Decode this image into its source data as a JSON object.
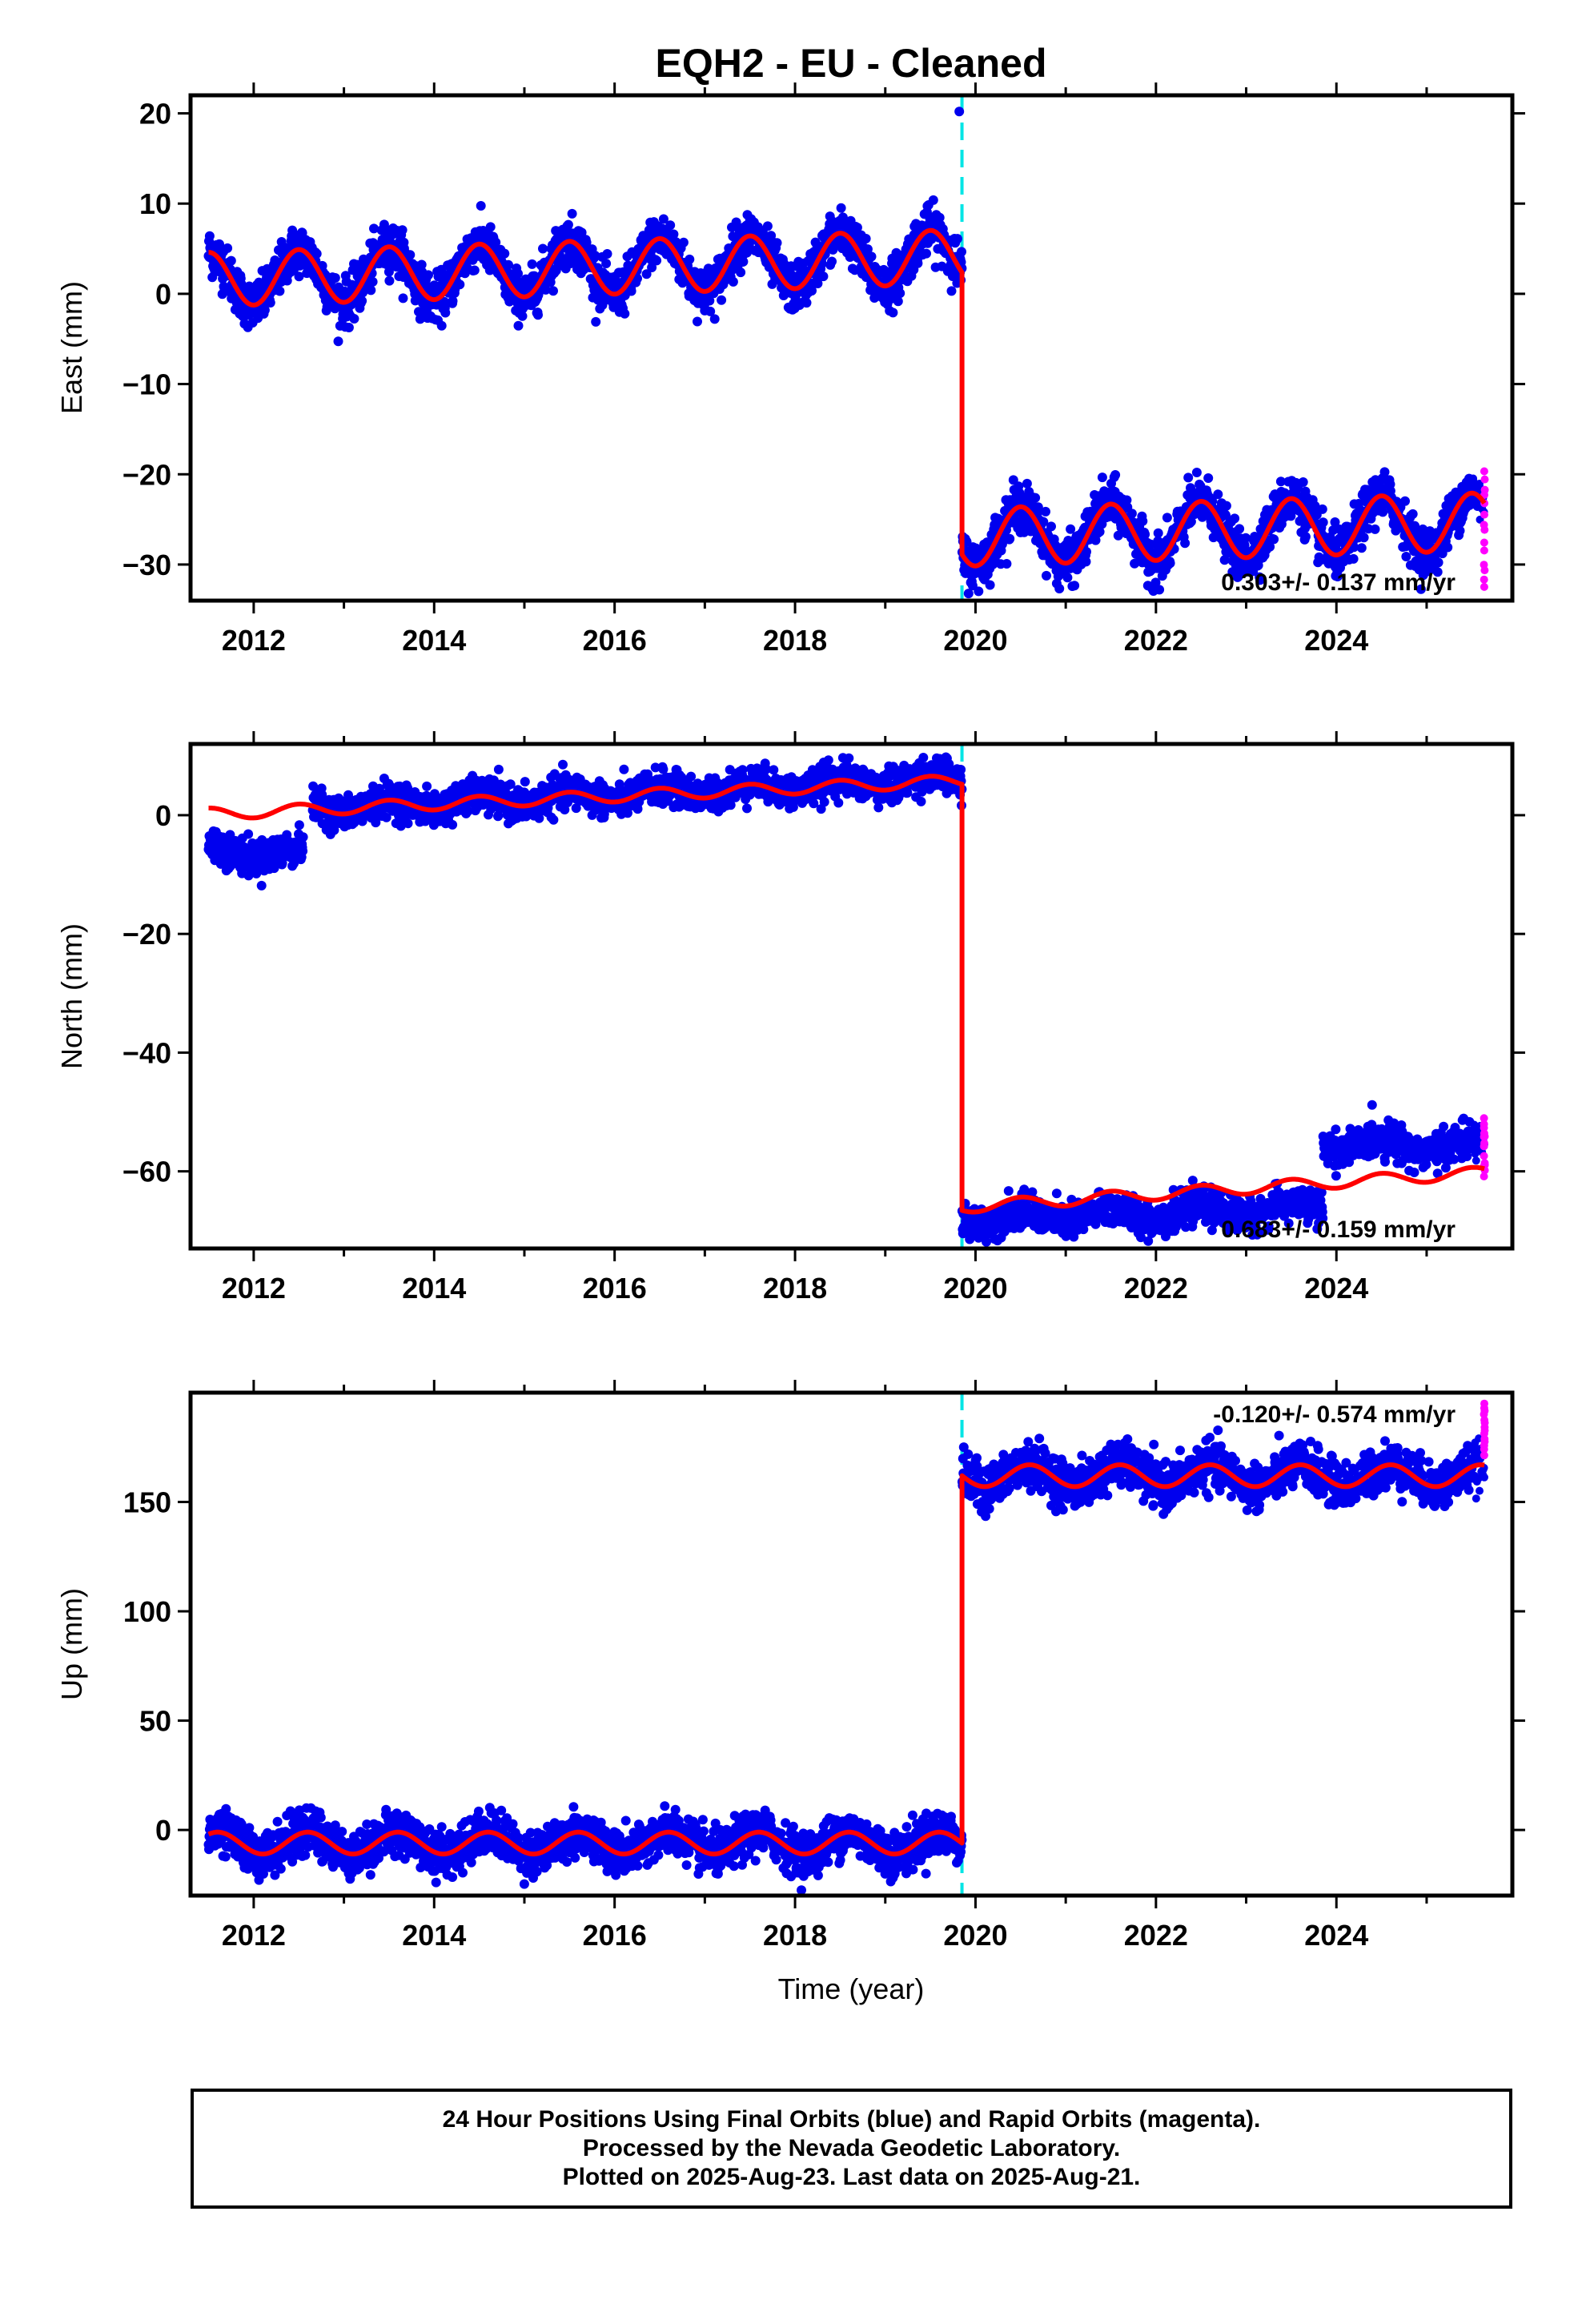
{
  "title": "EQH2  - EU - Cleaned",
  "footer": {
    "line1": "24 Hour Positions Using Final Orbits (blue) and Rapid Orbits (magenta).",
    "line2": "Processed by the Nevada Geodetic Laboratory.",
    "line3": "Plotted on 2025-Aug-23. Last data on 2025-Aug-21."
  },
  "colors": {
    "final_points": "#0000ee",
    "rapid_points": "#ff00ff",
    "model_line": "#ff0000",
    "offset_line": "#00e5e5",
    "frame": "#000000"
  },
  "chart_data": [
    {
      "type": "scatter",
      "component": "East",
      "ylabel": "East (mm)",
      "xlim": [
        2011.3,
        2025.95
      ],
      "ylim": [
        -34,
        22
      ],
      "xticks": [
        2012,
        2014,
        2016,
        2018,
        2020,
        2022,
        2024
      ],
      "yticks": [
        -30,
        -20,
        -10,
        0,
        10,
        20
      ],
      "rate_label": "0.303+/- 0.137 mm/yr",
      "rate_position": "bottom-right",
      "data_start": 2011.5,
      "offset_epoch": 2019.85,
      "rapid_start": 2025.5,
      "data_end": 2025.64,
      "model": {
        "before": {
          "intercept_at_2011_5": 1.6,
          "slope_mm_per_yr": 0.303,
          "annual_amplitude": 3.0,
          "annual_phase_peak": 0.5
        },
        "after": {
          "value_at_2019_85": -27.0,
          "slope_mm_per_yr": 0.303,
          "annual_amplitude": 3.2,
          "annual_phase_peak": 0.5
        }
      },
      "scatter_sigma": 1.3,
      "outliers": [
        {
          "x": 2019.82,
          "y": 20.2
        }
      ],
      "rapid_range": [
        -32.5,
        -19.5
      ]
    },
    {
      "type": "scatter",
      "component": "North",
      "ylabel": "North (mm)",
      "xlim": [
        2011.3,
        2025.95
      ],
      "ylim": [
        -73,
        12
      ],
      "xticks": [
        2012,
        2014,
        2016,
        2018,
        2020,
        2022,
        2024
      ],
      "yticks": [
        -60,
        -40,
        -20,
        0
      ],
      "rate_label": "0.683+/- 0.159 mm/yr",
      "rate_position": "bottom-right",
      "data_start": 2011.5,
      "offset_epoch": 2019.85,
      "rapid_start": 2025.5,
      "data_end": 2025.64,
      "model": {
        "before": {
          "value_at_2011_5": 0.2,
          "value_at_2019_85": 5.8,
          "annual_amplitude": 1.0,
          "annual_phase_peak": 0.5
        },
        "after": {
          "value_at_2019_85": -66.0,
          "value_at_2025_64": -60.2,
          "annual_amplitude": 1.0,
          "annual_phase_peak": 0.5
        }
      },
      "segments": [
        {
          "from": 2011.5,
          "to": 2012.55,
          "level_start": -6.0,
          "level_end": -6.5
        },
        {
          "from": 2012.65,
          "to": 2019.85,
          "level_start": 1.0,
          "level_end": 6.2
        },
        {
          "from": 2019.85,
          "to": 2023.85,
          "level_start": -68.0,
          "level_end": -66.2
        },
        {
          "from": 2023.85,
          "to": 2025.64,
          "level_start": -55.5,
          "level_end": -55.8
        }
      ],
      "scatter_sigma": 1.4,
      "rapid_range": [
        -61,
        -51
      ]
    },
    {
      "type": "scatter",
      "component": "Up",
      "ylabel": "Up (mm)",
      "xlim": [
        2011.3,
        2025.95
      ],
      "ylim": [
        -30,
        200
      ],
      "xticks": [
        2012,
        2014,
        2016,
        2018,
        2020,
        2022,
        2024
      ],
      "yticks": [
        0,
        50,
        100,
        150
      ],
      "rate_label": "-0.120+/- 0.574 mm/yr",
      "rate_position": "top-right",
      "data_start": 2011.5,
      "offset_epoch": 2019.85,
      "rapid_start": 2025.5,
      "data_end": 2025.64,
      "model": {
        "before": {
          "mean": -6.0,
          "annual_amplitude": 5.0,
          "annual_phase_peak": 0.6
        },
        "after": {
          "mean": 162.0,
          "annual_amplitude": 5.0,
          "annual_phase_peak": 0.6
        }
      },
      "scatter_sigma": 5.0,
      "rapid_range": [
        172,
        195
      ]
    }
  ]
}
